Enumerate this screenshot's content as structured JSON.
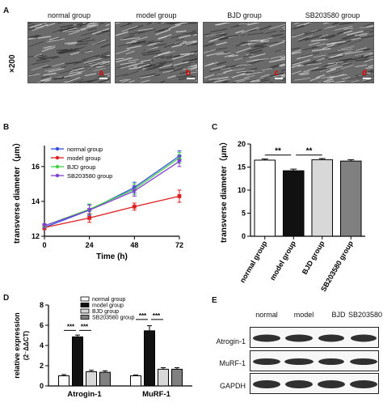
{
  "panels": {
    "a": {
      "label": "A",
      "groups": [
        "normal group",
        "model group",
        "BJD group",
        "SB203580 group"
      ],
      "magnification": "×200",
      "micro_marks": [
        "a",
        "b",
        "c",
        "d"
      ]
    },
    "b": {
      "label": "B"
    },
    "c": {
      "label": "C"
    },
    "d": {
      "label": "D"
    },
    "e": {
      "label": "E",
      "columns": [
        "normal",
        "model",
        "BJD",
        "SB203580"
      ],
      "rows": [
        "Atrogin-1",
        "MuRF-1",
        "GAPDH"
      ]
    }
  },
  "colors": {
    "normal": "#3050e0",
    "model": "#e02020",
    "bjd": "#40d040",
    "sb": "#8040d0",
    "bar_normal": "#ffffff",
    "bar_model": "#111111",
    "bar_bjd": "#d8d8d8",
    "bar_sb": "#808080"
  },
  "chart_data": [
    {
      "type": "line",
      "panel": "B",
      "x": [
        0,
        24,
        48,
        72
      ],
      "xlabel": "Time (h)",
      "ylabel": "transverse diameter（μm）",
      "xticks": [
        0,
        24,
        48,
        72
      ],
      "yticks": [
        12,
        14,
        16
      ],
      "ylim": [
        12,
        17.2
      ],
      "legend_position": "top-left",
      "series": [
        {
          "name": "normal group",
          "color": "#3050e0",
          "values": [
            12.5,
            13.5,
            14.8,
            16.6
          ],
          "err": [
            0.12,
            0.3,
            0.3,
            0.3
          ]
        },
        {
          "name": "model group",
          "color": "#e02020",
          "values": [
            12.5,
            13.05,
            13.7,
            14.3
          ],
          "err": [
            0.12,
            0.25,
            0.2,
            0.35
          ]
        },
        {
          "name": "BJD group",
          "color": "#40d040",
          "values": [
            12.6,
            13.55,
            14.7,
            16.5
          ],
          "err": [
            0.12,
            0.3,
            0.3,
            0.3
          ]
        },
        {
          "name": "SB203580 group",
          "color": "#8040d0",
          "values": [
            12.6,
            13.5,
            14.6,
            16.3
          ],
          "err": [
            0.12,
            0.3,
            0.3,
            0.3
          ]
        }
      ]
    },
    {
      "type": "bar",
      "panel": "C",
      "categories": [
        "normal group",
        "model group",
        "BJD group",
        "SB203580 group"
      ],
      "values": [
        16.5,
        14.2,
        16.6,
        16.3
      ],
      "err": [
        0.25,
        0.35,
        0.25,
        0.3
      ],
      "colors": [
        "#ffffff",
        "#111111",
        "#d8d8d8",
        "#808080"
      ],
      "ylabel": "transverse diameter（μm）",
      "yticks": [
        0,
        5,
        10,
        15,
        20
      ],
      "ylim": [
        0,
        20
      ],
      "significance": [
        {
          "from": 0,
          "to": 1,
          "label": "**"
        },
        {
          "from": 1,
          "to": 2,
          "label": "**"
        }
      ]
    },
    {
      "type": "bar",
      "panel": "D",
      "categories": [
        "Atrogin-1",
        "MuRF-1"
      ],
      "ylabel": "relative expression",
      "ylabel2": "(2⁻ΔΔCT)",
      "yticks": [
        0,
        2,
        4,
        6,
        8
      ],
      "ylim": [
        0,
        8
      ],
      "legend_position": "top",
      "series": [
        {
          "name": "normal group",
          "color": "#ffffff",
          "values": [
            1.0,
            1.0
          ],
          "err": [
            0.12,
            0.08
          ]
        },
        {
          "name": "model group",
          "color": "#111111",
          "values": [
            4.85,
            5.45
          ],
          "err": [
            0.18,
            0.5
          ]
        },
        {
          "name": "BJD group",
          "color": "#d8d8d8",
          "values": [
            1.4,
            1.65
          ],
          "err": [
            0.15,
            0.15
          ]
        },
        {
          "name": "SB203580 group",
          "color": "#808080",
          "values": [
            1.35,
            1.65
          ],
          "err": [
            0.15,
            0.15
          ]
        }
      ],
      "significance_label": "***"
    }
  ]
}
